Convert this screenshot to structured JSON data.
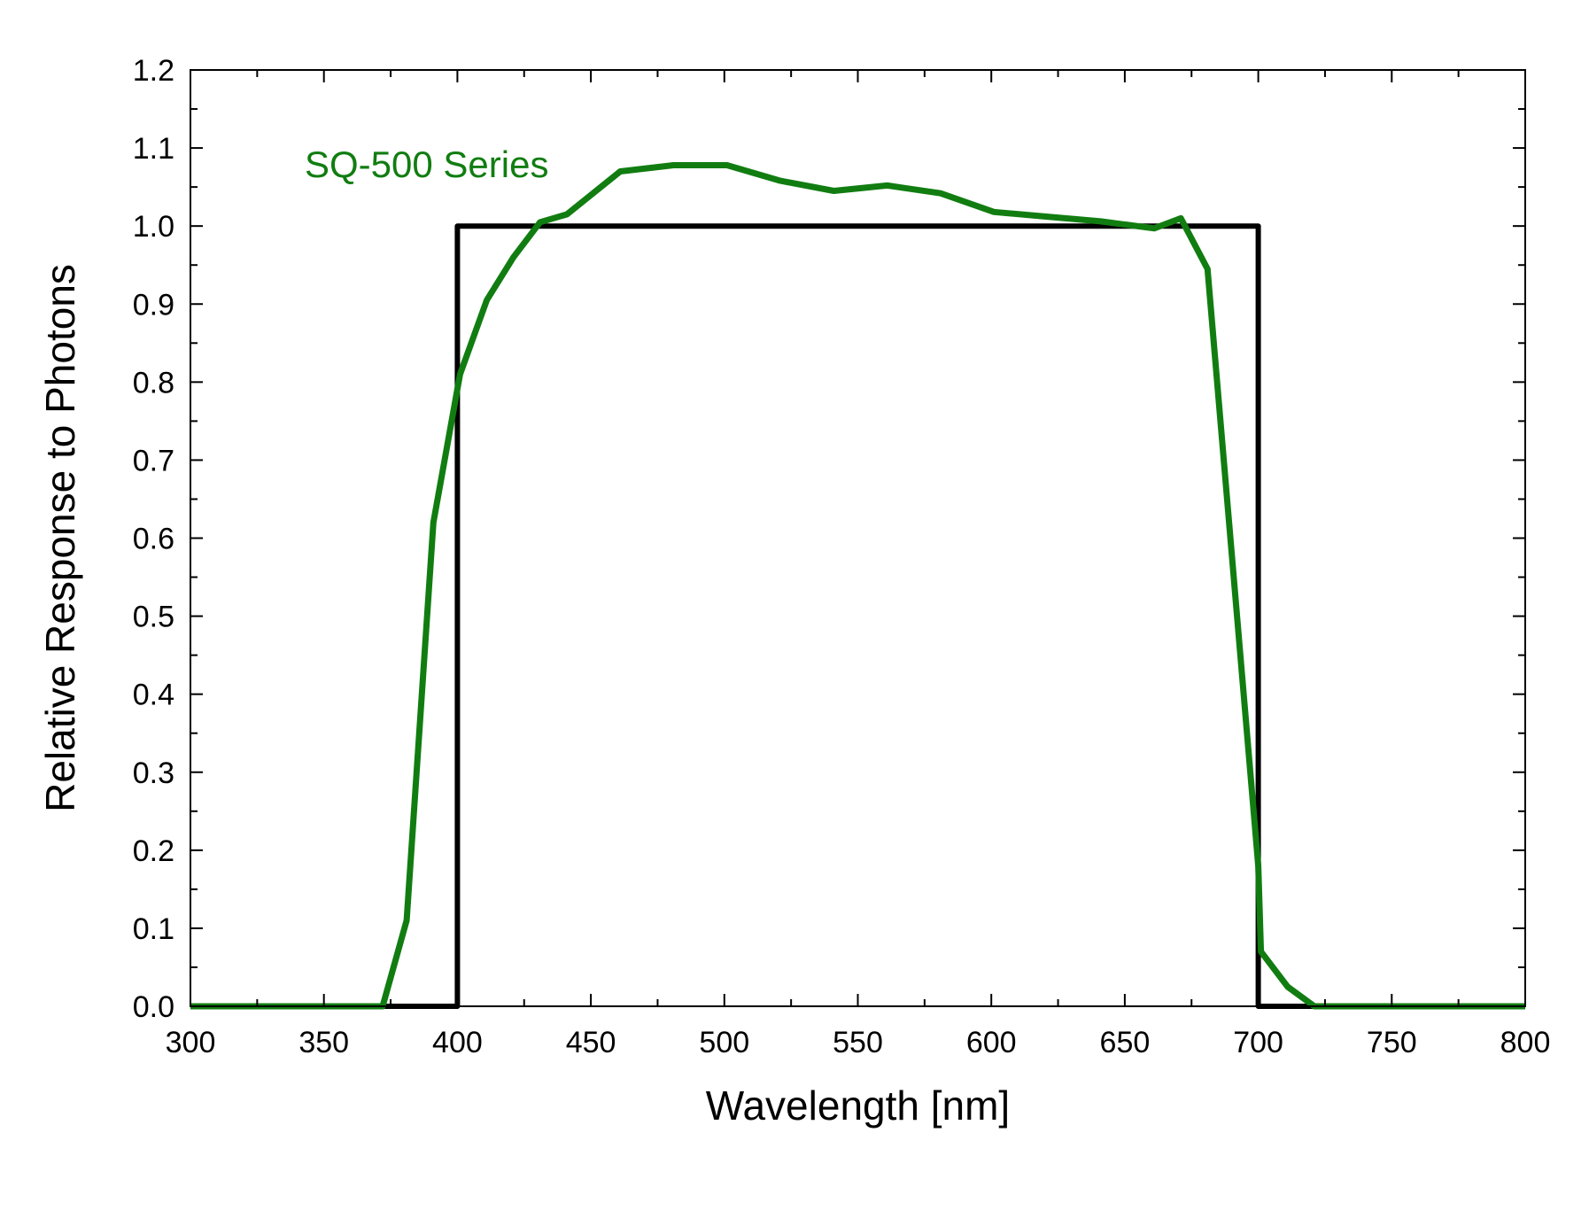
{
  "chart_data": {
    "type": "line",
    "xlabel": "Wavelength [nm]",
    "ylabel": "Relative Response to Photons",
    "xlim": [
      300,
      800
    ],
    "ylim": [
      0,
      1.2
    ],
    "x_ticks": [
      "300",
      "350",
      "400",
      "450",
      "500",
      "550",
      "600",
      "650",
      "700",
      "750",
      "800"
    ],
    "y_ticks": [
      "0.0",
      "0.1",
      "0.2",
      "0.3",
      "0.4",
      "0.5",
      "0.6",
      "0.7",
      "0.8",
      "0.9",
      "1.0",
      "1.1",
      "1.2"
    ],
    "grid": false,
    "annotations": [
      {
        "text": "SQ-500 Series",
        "series": 1
      }
    ],
    "series": [
      {
        "color": "#000000",
        "points": [
          [
            300,
            0
          ],
          [
            400,
            0
          ],
          [
            400,
            1.0
          ],
          [
            700,
            1.0
          ],
          [
            700,
            0
          ],
          [
            800,
            0
          ]
        ]
      },
      {
        "name": "SQ-500 Series",
        "color": "#117d11",
        "points": [
          [
            300,
            0
          ],
          [
            372,
            0
          ],
          [
            381,
            0.11
          ],
          [
            391,
            0.62
          ],
          [
            401,
            0.81
          ],
          [
            411,
            0.905
          ],
          [
            421,
            0.96
          ],
          [
            431,
            1.005
          ],
          [
            441,
            1.015
          ],
          [
            461,
            1.07
          ],
          [
            481,
            1.078
          ],
          [
            501,
            1.078
          ],
          [
            521,
            1.058
          ],
          [
            541,
            1.045
          ],
          [
            561,
            1.052
          ],
          [
            581,
            1.042
          ],
          [
            601,
            1.018
          ],
          [
            621,
            1.012
          ],
          [
            641,
            1.006
          ],
          [
            661,
            0.997
          ],
          [
            671,
            1.01
          ],
          [
            681,
            0.945
          ],
          [
            700,
            0.18
          ],
          [
            701,
            0.07
          ],
          [
            711,
            0.025
          ],
          [
            721,
            0
          ],
          [
            800,
            0
          ]
        ]
      }
    ]
  }
}
